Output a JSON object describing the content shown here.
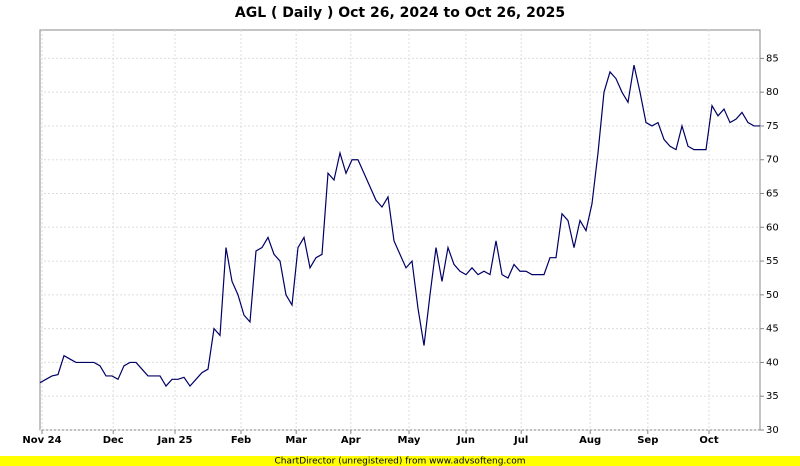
{
  "chart_data": {
    "type": "line",
    "title": "AGL ( Daily ) Oct 26, 2024 to Oct 26, 2025",
    "footer": "ChartDirector (unregistered) from www.advsofteng.com",
    "color": "#000066",
    "values": [
      37,
      37.5,
      38,
      38.2,
      41,
      40.5,
      40,
      40,
      40,
      40,
      39.5,
      38,
      38,
      37.5,
      39.5,
      40,
      40,
      39,
      38,
      38,
      38,
      36.5,
      37.5,
      37.5,
      37.8,
      36.5,
      37.5,
      38.5,
      39,
      45,
      44,
      57,
      52,
      50,
      47,
      46,
      56.5,
      57,
      58.5,
      56,
      55,
      50,
      48.5,
      57,
      58.5,
      54,
      55.5,
      56,
      68,
      67,
      71,
      68,
      70,
      70,
      68,
      66,
      64,
      63,
      64.5,
      58,
      56,
      54,
      55,
      48,
      42.5,
      50,
      57,
      52,
      57,
      54.5,
      53.5,
      53,
      54,
      53,
      53.5,
      53,
      58,
      53,
      52.5,
      54.5,
      53.5,
      53.5,
      53,
      53,
      53,
      55.5,
      55.5,
      62,
      61,
      57,
      61,
      59.5,
      63.5,
      71,
      80,
      83,
      82,
      80,
      78.5,
      84,
      80,
      75.5,
      75,
      75.5,
      73,
      72,
      71.5,
      75,
      72,
      71.5,
      71.5,
      71.5,
      78,
      76.5,
      77.5,
      75.5,
      76,
      77,
      75.5,
      75,
      75
    ],
    "xlim": [
      0,
      120
    ],
    "xticks": [
      {
        "value": 0.33,
        "label": "Nov 24"
      },
      {
        "value": 12.2,
        "label": "Dec"
      },
      {
        "value": 22.5,
        "label": "Jan 25"
      },
      {
        "value": 33.5,
        "label": "Feb"
      },
      {
        "value": 42.7,
        "label": "Mar"
      },
      {
        "value": 51.8,
        "label": "Apr"
      },
      {
        "value": 61.5,
        "label": "May"
      },
      {
        "value": 71,
        "label": "Jun"
      },
      {
        "value": 80.2,
        "label": "Jul"
      },
      {
        "value": 91.7,
        "label": "Aug"
      },
      {
        "value": 101.3,
        "label": "Sep"
      },
      {
        "value": 111.5,
        "label": "Oct"
      }
    ],
    "ylim": [
      30,
      89.2
    ],
    "yticks": [
      30,
      35,
      40,
      45,
      50,
      55,
      60,
      65,
      70,
      75,
      80,
      85
    ],
    "grid": true
  }
}
